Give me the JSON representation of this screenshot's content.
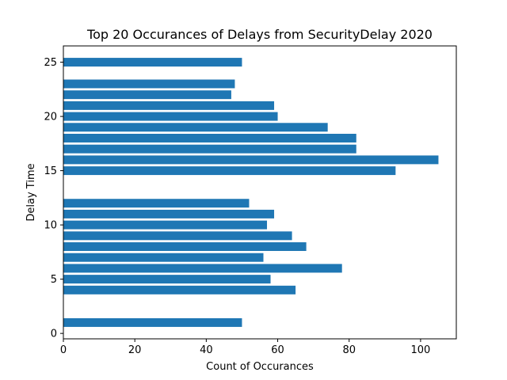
{
  "chart_data": {
    "type": "bar",
    "orientation": "horizontal",
    "title": "Top 20 Occurances of Delays from SecurityDelay 2020",
    "xlabel": "Count of Occurances",
    "ylabel": "Delay Time",
    "xlim": [
      0,
      110
    ],
    "ylim": [
      -0.5,
      26.5
    ],
    "xticks": [
      0,
      20,
      40,
      60,
      80,
      100
    ],
    "yticks": [
      0,
      5,
      10,
      15,
      20,
      25
    ],
    "grid": false,
    "bar_color": "#1f77b4",
    "data": [
      {
        "delay": 1,
        "count": 50
      },
      {
        "delay": 4,
        "count": 65
      },
      {
        "delay": 5,
        "count": 58
      },
      {
        "delay": 6,
        "count": 78
      },
      {
        "delay": 7,
        "count": 56
      },
      {
        "delay": 8,
        "count": 68
      },
      {
        "delay": 9,
        "count": 64
      },
      {
        "delay": 10,
        "count": 57
      },
      {
        "delay": 11,
        "count": 59
      },
      {
        "delay": 12,
        "count": 52
      },
      {
        "delay": 15,
        "count": 93
      },
      {
        "delay": 16,
        "count": 105
      },
      {
        "delay": 17,
        "count": 82
      },
      {
        "delay": 18,
        "count": 82
      },
      {
        "delay": 19,
        "count": 74
      },
      {
        "delay": 20,
        "count": 60
      },
      {
        "delay": 21,
        "count": 59
      },
      {
        "delay": 22,
        "count": 47
      },
      {
        "delay": 23,
        "count": 48
      },
      {
        "delay": 25,
        "count": 50
      }
    ]
  }
}
